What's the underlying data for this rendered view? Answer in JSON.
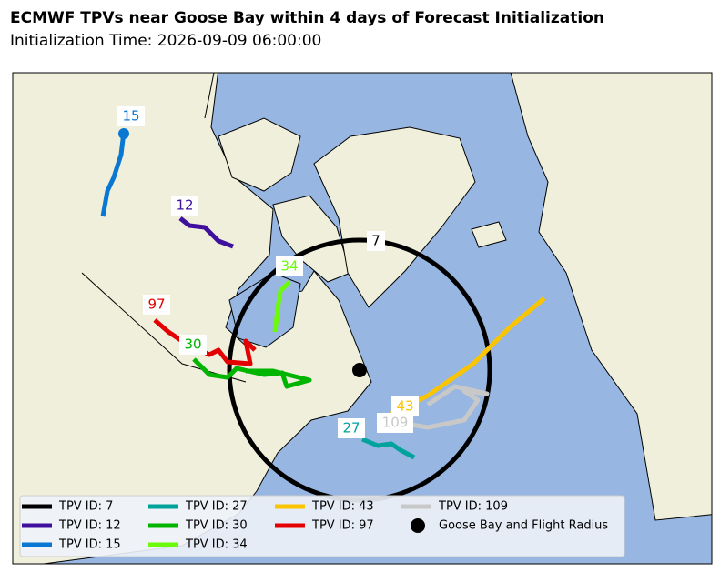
{
  "header": {
    "title": "ECMWF TPVs near Goose Bay within 4 days of Forecast Initialization",
    "subtitle": "Initialization Time: 2026-09-09 06:00:00"
  },
  "tracks": [
    {
      "label": "7",
      "color": "#000000"
    },
    {
      "label": "15",
      "color": "#0a78d2"
    },
    {
      "label": "12",
      "color": "#3f0f9e"
    },
    {
      "label": "34",
      "color": "#6cfa0b"
    },
    {
      "label": "97",
      "color": "#e40000"
    },
    {
      "label": "30",
      "color": "#00b400"
    },
    {
      "label": "43",
      "color": "#fbc402"
    },
    {
      "label": "109",
      "color": "#c8c8c8"
    },
    {
      "label": "27",
      "color": "#00a39b"
    }
  ],
  "legend": {
    "items": [
      {
        "label": "TPV ID: 7",
        "color": "#000000"
      },
      {
        "label": "TPV ID: 12",
        "color": "#3f0f9e"
      },
      {
        "label": "TPV ID: 15",
        "color": "#0a78d2"
      },
      {
        "label": "TPV ID: 27",
        "color": "#00a39b"
      },
      {
        "label": "TPV ID: 30",
        "color": "#00b400"
      },
      {
        "label": "TPV ID: 34",
        "color": "#6cfa0b"
      },
      {
        "label": "TPV ID: 43",
        "color": "#fbc402"
      },
      {
        "label": "TPV ID: 97",
        "color": "#e40000"
      },
      {
        "label": "TPV ID: 109",
        "color": "#c8c8c8"
      },
      {
        "label": "Goose Bay and Flight Radius",
        "color": "#000000"
      }
    ]
  }
}
